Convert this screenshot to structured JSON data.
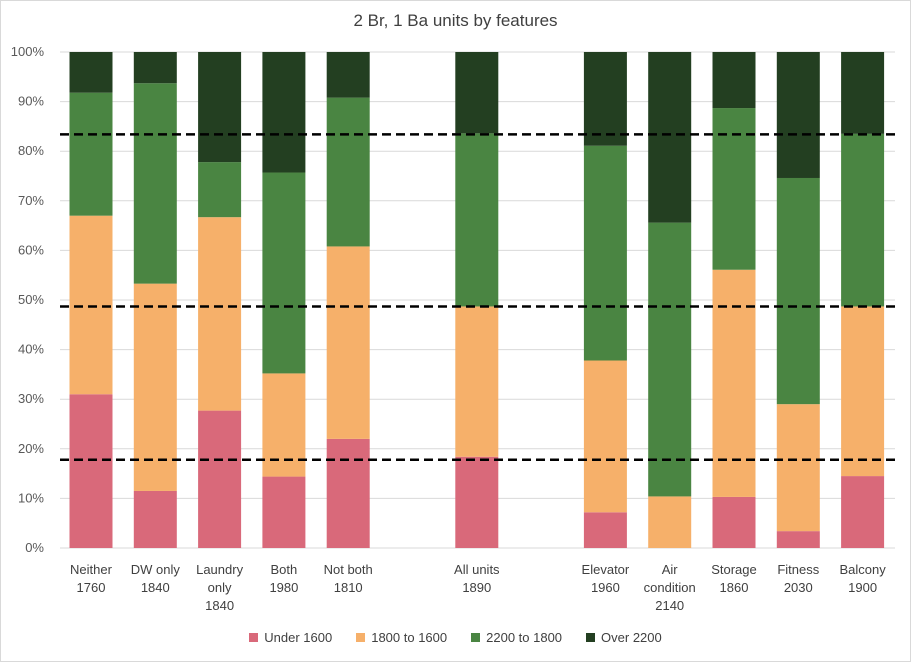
{
  "chart_data": {
    "type": "bar",
    "stacked": true,
    "percent": true,
    "title": "2 Br, 1 Ba units by features",
    "ylim": [
      0,
      100
    ],
    "yticks": [
      "0%",
      "10%",
      "20%",
      "30%",
      "40%",
      "50%",
      "60%",
      "70%",
      "80%",
      "90%",
      "100%"
    ],
    "grid": true,
    "legend_position": "bottom",
    "categories": [
      {
        "lines": [
          "Neither",
          "1760"
        ],
        "group": 0
      },
      {
        "lines": [
          "DW only",
          "1840"
        ],
        "group": 0
      },
      {
        "lines": [
          "Laundry",
          "only",
          "1840"
        ],
        "group": 0
      },
      {
        "lines": [
          "Both",
          "1980"
        ],
        "group": 0
      },
      {
        "lines": [
          "Not both",
          "1810"
        ],
        "group": 0
      },
      {
        "lines": [
          "All units",
          "1890"
        ],
        "group": 1
      },
      {
        "lines": [
          "Elevator",
          "1960"
        ],
        "group": 2
      },
      {
        "lines": [
          "Air",
          "condition",
          "2140"
        ],
        "group": 2
      },
      {
        "lines": [
          "Storage",
          "1860"
        ],
        "group": 2
      },
      {
        "lines": [
          "Fitness",
          "2030"
        ],
        "group": 2
      },
      {
        "lines": [
          "Balcony",
          "1900"
        ],
        "group": 2
      }
    ],
    "series": [
      {
        "name": "Under 1600",
        "color": "#d9697a",
        "values": [
          31,
          11.5,
          27.7,
          14.4,
          22,
          18.4,
          7.2,
          0,
          10.3,
          3.4,
          14.5
        ]
      },
      {
        "name": "1800 to 1600",
        "color": "#f6b06a",
        "values": [
          36,
          41.8,
          39,
          20.8,
          38.8,
          30.3,
          30.6,
          10.4,
          45.8,
          25.6,
          34.2
        ]
      },
      {
        "name": "2200 to 1800",
        "color": "#4a8542",
        "values": [
          24.8,
          40.4,
          11.1,
          40.5,
          30,
          34.9,
          43.3,
          55.2,
          32.6,
          45.6,
          34.8
        ]
      },
      {
        "name": "Over 2200",
        "color": "#233f21",
        "values": [
          8.2,
          6.3,
          22.2,
          24.3,
          9.2,
          16.4,
          18.9,
          34.4,
          11.3,
          25.4,
          16.5
        ]
      }
    ],
    "reference_lines": [
      17.8,
      48.7,
      83.4
    ]
  }
}
